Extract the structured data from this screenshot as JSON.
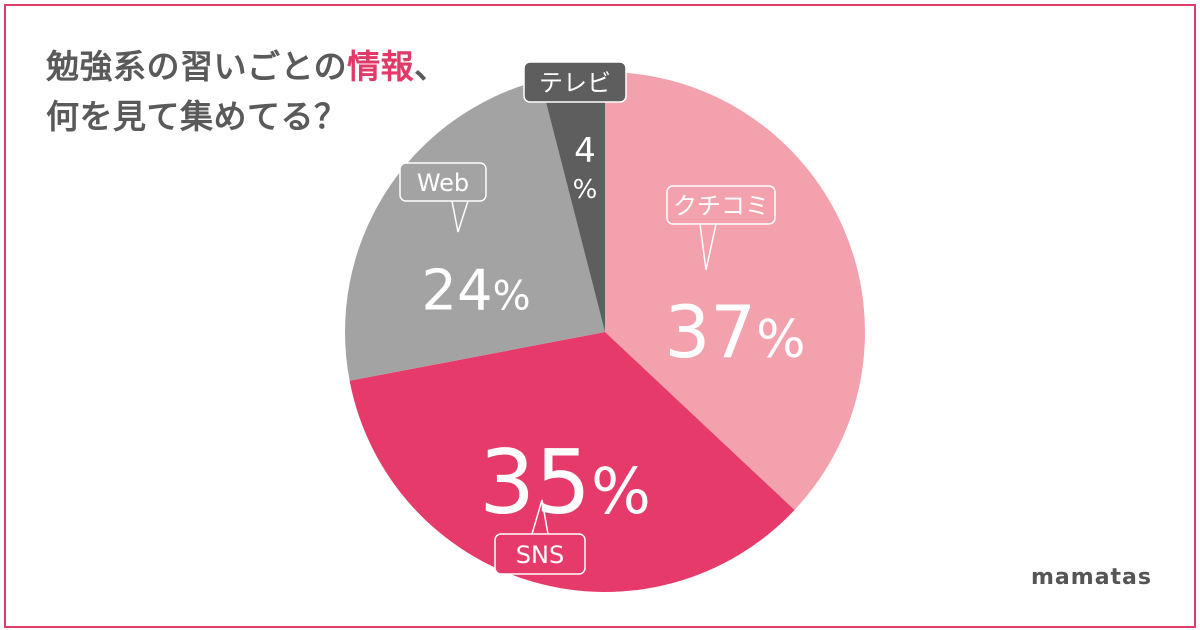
{
  "title": {
    "line1_pre": "勉強系の習いごとの",
    "line1_hl": "情報",
    "line1_post": "、",
    "line2": "何を見て集めてる？"
  },
  "brand": "mamatas",
  "chart_data": {
    "type": "pie",
    "title": "勉強系の習いごとの情報、何を見て集めてる？",
    "slices": [
      {
        "label": "クチコミ",
        "value": 37,
        "display": "37%",
        "color": "#f2a1ad"
      },
      {
        "label": "SNS",
        "value": 35,
        "display": "35%",
        "color": "#e63b6a"
      },
      {
        "label": "Web",
        "value": 24,
        "display": "24%",
        "color": "#a3a3a3"
      },
      {
        "label": "テレビ",
        "value": 4,
        "display": "4%",
        "color": "#5e5e5e"
      }
    ]
  }
}
